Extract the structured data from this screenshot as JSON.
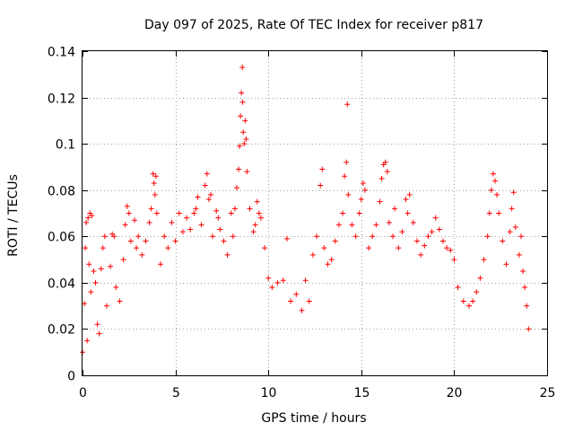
{
  "chart_data": {
    "type": "scatter",
    "title": "Day 097 of 2025, Rate Of TEC Index for receiver p817",
    "xlabel": "GPS time / hours",
    "ylabel": "ROTI / TECUs",
    "xlim": [
      0,
      25
    ],
    "ylim": [
      0,
      0.14
    ],
    "xticks": [
      "0",
      "5",
      "10",
      "15",
      "20",
      "25"
    ],
    "yticks": [
      "0",
      "0.02",
      "0.04",
      "0.06",
      "0.08",
      "0.1",
      "0.12",
      "0.14"
    ],
    "grid": true,
    "marker": "+",
    "color": "#ff0000",
    "series": [
      {
        "points": [
          [
            0.0,
            0.01
          ],
          [
            0.1,
            0.031
          ],
          [
            0.15,
            0.055
          ],
          [
            0.2,
            0.066
          ],
          [
            0.25,
            0.015
          ],
          [
            0.3,
            0.068
          ],
          [
            0.35,
            0.048
          ],
          [
            0.4,
            0.07
          ],
          [
            0.45,
            0.036
          ],
          [
            0.5,
            0.069
          ],
          [
            0.6,
            0.045
          ],
          [
            0.7,
            0.04
          ],
          [
            0.8,
            0.022
          ],
          [
            0.9,
            0.018
          ],
          [
            1.0,
            0.046
          ],
          [
            1.1,
            0.055
          ],
          [
            1.2,
            0.06
          ],
          [
            1.3,
            0.03
          ],
          [
            1.5,
            0.047
          ],
          [
            1.6,
            0.061
          ],
          [
            1.7,
            0.06
          ],
          [
            1.8,
            0.038
          ],
          [
            2.0,
            0.032
          ],
          [
            2.2,
            0.05
          ],
          [
            2.3,
            0.065
          ],
          [
            2.4,
            0.073
          ],
          [
            2.5,
            0.07
          ],
          [
            2.6,
            0.058
          ],
          [
            2.8,
            0.067
          ],
          [
            2.9,
            0.055
          ],
          [
            3.0,
            0.06
          ],
          [
            3.2,
            0.052
          ],
          [
            3.4,
            0.058
          ],
          [
            3.6,
            0.066
          ],
          [
            3.7,
            0.072
          ],
          [
            3.8,
            0.087
          ],
          [
            3.85,
            0.083
          ],
          [
            3.9,
            0.078
          ],
          [
            3.95,
            0.086
          ],
          [
            4.0,
            0.07
          ],
          [
            4.2,
            0.048
          ],
          [
            4.4,
            0.06
          ],
          [
            4.6,
            0.055
          ],
          [
            4.8,
            0.066
          ],
          [
            5.0,
            0.058
          ],
          [
            5.2,
            0.07
          ],
          [
            5.4,
            0.062
          ],
          [
            5.6,
            0.068
          ],
          [
            5.8,
            0.063
          ],
          [
            6.0,
            0.07
          ],
          [
            6.1,
            0.072
          ],
          [
            6.2,
            0.077
          ],
          [
            6.4,
            0.065
          ],
          [
            6.6,
            0.082
          ],
          [
            6.7,
            0.087
          ],
          [
            6.8,
            0.076
          ],
          [
            6.9,
            0.078
          ],
          [
            7.0,
            0.06
          ],
          [
            7.2,
            0.071
          ],
          [
            7.3,
            0.068
          ],
          [
            7.4,
            0.063
          ],
          [
            7.6,
            0.058
          ],
          [
            7.8,
            0.052
          ],
          [
            8.0,
            0.07
          ],
          [
            8.1,
            0.06
          ],
          [
            8.2,
            0.072
          ],
          [
            8.3,
            0.081
          ],
          [
            8.4,
            0.089
          ],
          [
            8.45,
            0.099
          ],
          [
            8.5,
            0.112
          ],
          [
            8.55,
            0.122
          ],
          [
            8.6,
            0.133
          ],
          [
            8.62,
            0.118
          ],
          [
            8.65,
            0.105
          ],
          [
            8.7,
            0.1
          ],
          [
            8.75,
            0.11
          ],
          [
            8.8,
            0.102
          ],
          [
            8.85,
            0.088
          ],
          [
            9.0,
            0.072
          ],
          [
            9.2,
            0.062
          ],
          [
            9.3,
            0.065
          ],
          [
            9.4,
            0.075
          ],
          [
            9.5,
            0.07
          ],
          [
            9.6,
            0.068
          ],
          [
            9.8,
            0.055
          ],
          [
            10.0,
            0.042
          ],
          [
            10.2,
            0.038
          ],
          [
            10.5,
            0.04
          ],
          [
            10.8,
            0.041
          ],
          [
            11.0,
            0.059
          ],
          [
            11.2,
            0.032
          ],
          [
            11.5,
            0.035
          ],
          [
            11.8,
            0.028
          ],
          [
            12.0,
            0.041
          ],
          [
            12.2,
            0.032
          ],
          [
            12.4,
            0.052
          ],
          [
            12.6,
            0.06
          ],
          [
            12.8,
            0.082
          ],
          [
            12.9,
            0.089
          ],
          [
            13.0,
            0.055
          ],
          [
            13.2,
            0.048
          ],
          [
            13.4,
            0.05
          ],
          [
            13.6,
            0.058
          ],
          [
            13.8,
            0.065
          ],
          [
            14.0,
            0.07
          ],
          [
            14.1,
            0.086
          ],
          [
            14.2,
            0.092
          ],
          [
            14.25,
            0.117
          ],
          [
            14.3,
            0.078
          ],
          [
            14.5,
            0.065
          ],
          [
            14.7,
            0.06
          ],
          [
            14.9,
            0.07
          ],
          [
            15.0,
            0.076
          ],
          [
            15.1,
            0.083
          ],
          [
            15.2,
            0.08
          ],
          [
            15.4,
            0.055
          ],
          [
            15.6,
            0.06
          ],
          [
            15.8,
            0.065
          ],
          [
            16.0,
            0.075
          ],
          [
            16.1,
            0.085
          ],
          [
            16.2,
            0.091
          ],
          [
            16.3,
            0.092
          ],
          [
            16.4,
            0.088
          ],
          [
            16.5,
            0.066
          ],
          [
            16.7,
            0.06
          ],
          [
            16.8,
            0.072
          ],
          [
            17.0,
            0.055
          ],
          [
            17.2,
            0.062
          ],
          [
            17.4,
            0.076
          ],
          [
            17.5,
            0.07
          ],
          [
            17.6,
            0.078
          ],
          [
            17.8,
            0.066
          ],
          [
            18.0,
            0.058
          ],
          [
            18.2,
            0.052
          ],
          [
            18.4,
            0.056
          ],
          [
            18.6,
            0.06
          ],
          [
            18.8,
            0.062
          ],
          [
            19.0,
            0.068
          ],
          [
            19.2,
            0.063
          ],
          [
            19.4,
            0.058
          ],
          [
            19.6,
            0.055
          ],
          [
            19.8,
            0.054
          ],
          [
            20.0,
            0.05
          ],
          [
            20.2,
            0.038
          ],
          [
            20.5,
            0.032
          ],
          [
            20.8,
            0.03
          ],
          [
            21.0,
            0.032
          ],
          [
            21.2,
            0.036
          ],
          [
            21.4,
            0.042
          ],
          [
            21.6,
            0.05
          ],
          [
            21.8,
            0.06
          ],
          [
            21.9,
            0.07
          ],
          [
            22.0,
            0.08
          ],
          [
            22.1,
            0.087
          ],
          [
            22.2,
            0.084
          ],
          [
            22.3,
            0.078
          ],
          [
            22.4,
            0.07
          ],
          [
            22.6,
            0.058
          ],
          [
            22.8,
            0.048
          ],
          [
            23.0,
            0.062
          ],
          [
            23.1,
            0.072
          ],
          [
            23.2,
            0.079
          ],
          [
            23.3,
            0.064
          ],
          [
            23.5,
            0.052
          ],
          [
            23.6,
            0.06
          ],
          [
            23.7,
            0.045
          ],
          [
            23.8,
            0.038
          ],
          [
            23.9,
            0.03
          ],
          [
            24.0,
            0.02
          ]
        ]
      }
    ]
  }
}
